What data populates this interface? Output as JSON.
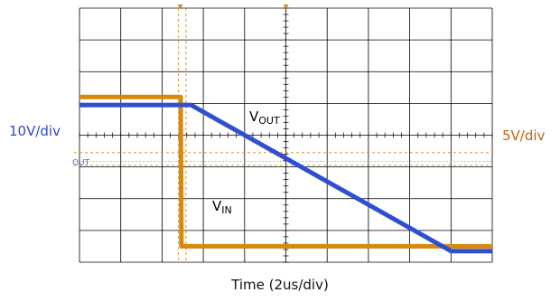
{
  "chart_data": {
    "type": "line",
    "xlabel": "Time (2us/div)",
    "x_divisions": 10,
    "y_divisions": 8,
    "grid": true,
    "x_unit": "div",
    "left_axis": {
      "label": "10V/div",
      "color": "#2e48c8"
    },
    "right_axis": {
      "label": "5V/div",
      "color": "#c8620a"
    },
    "marker_label": "OUT",
    "series": [
      {
        "name": "VOUT",
        "label_main": "V",
        "label_sub": "OUT",
        "color": "#2f4fd1",
        "x": [
          0,
          2.7,
          9.0,
          10
        ],
        "y": [
          0.95,
          0.95,
          -3.65,
          -3.65
        ]
      },
      {
        "name": "VIN",
        "label_main": "V",
        "label_sub": "IN",
        "color": "#d8870f",
        "x": [
          0,
          2.45,
          2.47,
          10
        ],
        "y": [
          1.2,
          1.2,
          -3.5,
          -3.5
        ]
      }
    ]
  }
}
